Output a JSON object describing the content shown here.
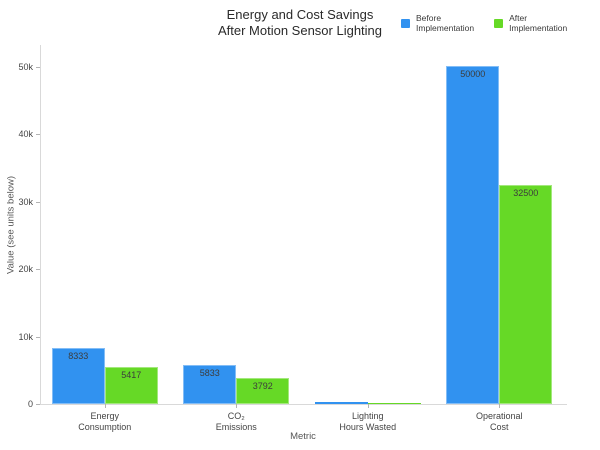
{
  "title": {
    "line1": "Energy and Cost Savings",
    "line2": "After Motion Sensor Lighting"
  },
  "legend": {
    "items": [
      {
        "line1": "Before",
        "line2": "Implementation",
        "color": "#3192F0"
      },
      {
        "line1": "After",
        "line2": "Implementation",
        "color": "#66D926"
      }
    ]
  },
  "chart_data": {
    "type": "bar",
    "title": "Energy and Cost Savings After Motion Sensor Lighting",
    "xlabel": "Metric",
    "ylabel": "Value (see units below)",
    "categories": [
      {
        "line1": "Energy",
        "line2": "Consumption"
      },
      {
        "line1": "CO₂",
        "line2": "Emissions"
      },
      {
        "line1": "Lighting",
        "line2": "Hours Wasted"
      },
      {
        "line1": "Operational",
        "line2": "Cost"
      }
    ],
    "series": [
      {
        "name": "Before Implementation",
        "color": "#3192F0",
        "values": [
          8333,
          5833,
          250,
          50000
        ],
        "bar_labels": [
          "8333",
          "5833",
          "",
          "50000"
        ]
      },
      {
        "name": "After Implementation",
        "color": "#66D926",
        "values": [
          5417,
          3792,
          163,
          32500
        ],
        "bar_labels": [
          "5417",
          "3792",
          "",
          "32500"
        ]
      }
    ],
    "yticks": [
      {
        "value": 0,
        "label": "0"
      },
      {
        "value": 10000,
        "label": "10k"
      },
      {
        "value": 20000,
        "label": "20k"
      },
      {
        "value": 30000,
        "label": "30k"
      },
      {
        "value": 40000,
        "label": "40k"
      },
      {
        "value": 50000,
        "label": "50k"
      }
    ],
    "ylim": [
      0,
      53200
    ],
    "grid": false,
    "legend_position": "top-right"
  }
}
